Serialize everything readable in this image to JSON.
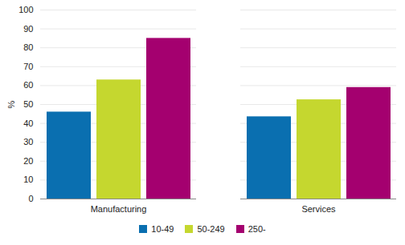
{
  "chart_data": {
    "type": "bar",
    "categories": [
      "Manufacturing",
      "Services"
    ],
    "series": [
      {
        "name": "10-49",
        "color": "#0a6fb0",
        "values": [
          46,
          43.5
        ]
      },
      {
        "name": "50-249",
        "color": "#c5d72f",
        "values": [
          63,
          52.5
        ]
      },
      {
        "name": "250-",
        "color": "#a4006f",
        "values": [
          85,
          59
        ]
      }
    ],
    "ylabel": "%",
    "ylim": [
      0,
      100
    ],
    "yticks": [
      0,
      10,
      20,
      30,
      40,
      50,
      60,
      70,
      80,
      90,
      100
    ],
    "grid": true,
    "legend": "bottom"
  }
}
